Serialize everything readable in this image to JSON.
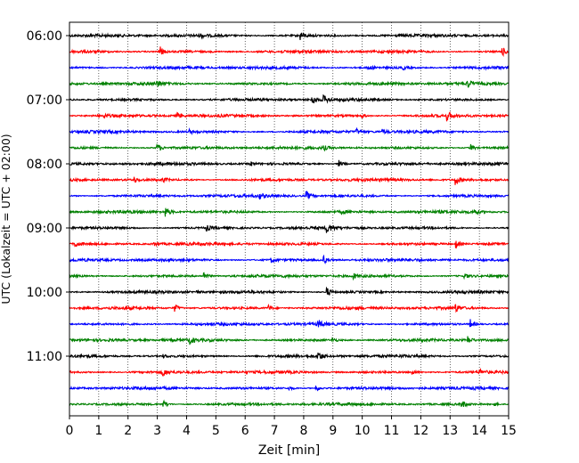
{
  "chart_data": {
    "type": "line",
    "title": "",
    "xlabel": "Zeit  [min]",
    "ylabel": "UTC (Lokalzeit = UTC + 02:00)",
    "xlim": [
      0,
      15
    ],
    "x_ticks": [
      "0",
      "1",
      "2",
      "3",
      "4",
      "5",
      "6",
      "7",
      "8",
      "9",
      "10",
      "11",
      "12",
      "13",
      "14",
      "15"
    ],
    "y_ticks": [
      "06:00",
      "07:00",
      "08:00",
      "09:00",
      "10:00",
      "11:00"
    ],
    "grid": "vertical dotted at each minute",
    "trace_interval_min": 15,
    "colors": [
      "#000000",
      "#ff0000",
      "#0000ff",
      "#008000"
    ],
    "traces": [
      {
        "start": "06:00",
        "color": "#000000",
        "events": [
          [
            7.9,
            5
          ],
          [
            4.5,
            1.5
          ]
        ]
      },
      {
        "start": "06:15",
        "color": "#ff0000",
        "events": [
          [
            3.1,
            5
          ],
          [
            14.8,
            4
          ]
        ]
      },
      {
        "start": "06:30",
        "color": "#0000ff",
        "events": [
          [
            10.2,
            2.5
          ],
          [
            11.4,
            2
          ]
        ]
      },
      {
        "start": "06:45",
        "color": "#008000",
        "events": [
          [
            3.0,
            4
          ],
          [
            13.6,
            4
          ]
        ]
      },
      {
        "start": "07:00",
        "color": "#000000",
        "events": [
          [
            8.3,
            5
          ],
          [
            8.7,
            4
          ]
        ]
      },
      {
        "start": "07:15",
        "color": "#ff0000",
        "events": [
          [
            3.7,
            3
          ],
          [
            10.0,
            2
          ],
          [
            12.9,
            5
          ],
          [
            1.2,
            2
          ]
        ]
      },
      {
        "start": "07:30",
        "color": "#0000ff",
        "events": [
          [
            9.8,
            3
          ],
          [
            10.7,
            2
          ],
          [
            4.1,
            2
          ]
        ]
      },
      {
        "start": "07:45",
        "color": "#008000",
        "events": [
          [
            3.0,
            5
          ],
          [
            8.7,
            2
          ],
          [
            13.7,
            4
          ]
        ]
      },
      {
        "start": "08:00",
        "color": "#000000",
        "events": [
          [
            9.2,
            4
          ],
          [
            6.2,
            2
          ]
        ]
      },
      {
        "start": "08:15",
        "color": "#ff0000",
        "events": [
          [
            2.2,
            2.5
          ],
          [
            3.2,
            2
          ],
          [
            13.2,
            5
          ]
        ]
      },
      {
        "start": "08:30",
        "color": "#0000ff",
        "events": [
          [
            8.1,
            5
          ],
          [
            6.5,
            2
          ]
        ]
      },
      {
        "start": "08:45",
        "color": "#008000",
        "events": [
          [
            3.3,
            5
          ],
          [
            9.3,
            2
          ],
          [
            13.8,
            4
          ]
        ]
      },
      {
        "start": "09:00",
        "color": "#000000",
        "events": [
          [
            8.8,
            5
          ],
          [
            4.7,
            3
          ]
        ]
      },
      {
        "start": "09:15",
        "color": "#ff0000",
        "events": [
          [
            0.2,
            4
          ],
          [
            2.9,
            2
          ],
          [
            13.2,
            4
          ]
        ]
      },
      {
        "start": "09:30",
        "color": "#0000ff",
        "events": [
          [
            6.9,
            2.5
          ],
          [
            8.7,
            4
          ]
        ]
      },
      {
        "start": "09:45",
        "color": "#008000",
        "events": [
          [
            4.6,
            4
          ],
          [
            9.7,
            2.5
          ],
          [
            13.5,
            3
          ]
        ]
      },
      {
        "start": "10:00",
        "color": "#000000",
        "events": [
          [
            8.8,
            5
          ],
          [
            4.3,
            1.5
          ]
        ]
      },
      {
        "start": "10:15",
        "color": "#ff0000",
        "events": [
          [
            3.6,
            4
          ],
          [
            6.8,
            3
          ],
          [
            13.2,
            4
          ]
        ]
      },
      {
        "start": "10:30",
        "color": "#0000ff",
        "events": [
          [
            8.5,
            4
          ],
          [
            13.7,
            5
          ]
        ]
      },
      {
        "start": "10:45",
        "color": "#008000",
        "events": [
          [
            4.1,
            4
          ],
          [
            9.0,
            2
          ],
          [
            13.6,
            4
          ]
        ]
      },
      {
        "start": "11:00",
        "color": "#000000",
        "events": [
          [
            8.5,
            5
          ],
          [
            3.2,
            1.5
          ]
        ]
      },
      {
        "start": "11:15",
        "color": "#ff0000",
        "events": [
          [
            3.2,
            4
          ],
          [
            11.7,
            3
          ],
          [
            14.0,
            3
          ]
        ]
      },
      {
        "start": "11:30",
        "color": "#0000ff",
        "events": [
          [
            8.4,
            4
          ],
          [
            7.5,
            2
          ]
        ]
      },
      {
        "start": "11:45",
        "color": "#008000",
        "events": [
          [
            3.2,
            4
          ],
          [
            13.4,
            4
          ],
          [
            14.5,
            2
          ]
        ]
      }
    ]
  }
}
